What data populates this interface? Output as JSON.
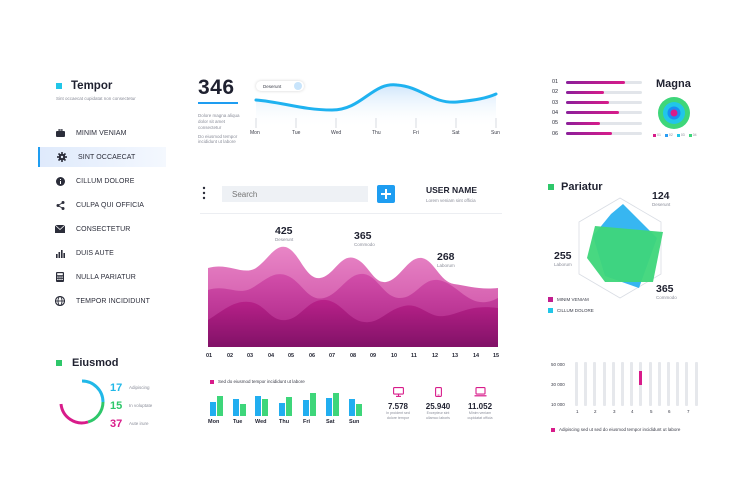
{
  "sidebar": {
    "brand": "Tempor",
    "subtitle": "Sint occaecat cupidatat non consectetur",
    "items": [
      {
        "label": "MINIM VENIAM",
        "icon": "briefcase-icon",
        "active": false
      },
      {
        "label": "SINT OCCAECAT",
        "icon": "gear-icon",
        "active": true
      },
      {
        "label": "CILLUM DOLORE",
        "icon": "info-icon",
        "active": false
      },
      {
        "label": "CULPA QUI OFFICIA",
        "icon": "share-icon",
        "active": false
      },
      {
        "label": "CONSECTETUR",
        "icon": "envelope-icon",
        "active": false
      },
      {
        "label": "DUIS AUTE",
        "icon": "bar-chart-icon",
        "active": false
      },
      {
        "label": "NULLA PARIATUR",
        "icon": "calculator-icon",
        "active": false
      },
      {
        "label": "TEMPOR INCIDIDUNT",
        "icon": "globe-icon",
        "active": false
      }
    ]
  },
  "top_line": {
    "big_number": "346",
    "desc1": "Dolore magna aliqua dolor sit amet consectetur",
    "desc2": "Do eiusmod tempor incididunt ut labore",
    "tooltip": "Deserunt",
    "days": [
      "Mon",
      "Tue",
      "Wed",
      "Thu",
      "Fri",
      "Sat",
      "Sun"
    ]
  },
  "magna": {
    "title": "Magna",
    "rows": [
      {
        "label": "01",
        "value": 0.77
      },
      {
        "label": "02",
        "value": 0.5
      },
      {
        "label": "03",
        "value": 0.57
      },
      {
        "label": "04",
        "value": 0.7
      },
      {
        "label": "05",
        "value": 0.45
      },
      {
        "label": "06",
        "value": 0.6
      }
    ],
    "legend": [
      "01",
      "02",
      "03",
      "04"
    ],
    "legend_colors": [
      "#d81b8a",
      "#2a9df4",
      "#21c6e8",
      "#3ed67a"
    ]
  },
  "main": {
    "search_placeholder": "Search",
    "user_name": "USER NAME",
    "user_sub": "Lorem veniam sint officia",
    "stats": [
      {
        "value": "425",
        "label": "Deserunt"
      },
      {
        "value": "365",
        "label": "Commodo"
      },
      {
        "value": "268",
        "label": "Laborum"
      }
    ],
    "x_labels": [
      "01",
      "02",
      "03",
      "04",
      "05",
      "06",
      "07",
      "08",
      "09",
      "10",
      "11",
      "12",
      "13",
      "14",
      "15"
    ]
  },
  "pariatur": {
    "title": "Pariatur",
    "stats": [
      {
        "value": "124",
        "label": "Deserunt"
      },
      {
        "value": "255",
        "label": "Laborum"
      },
      {
        "value": "365",
        "label": "Commodo"
      }
    ],
    "legend": [
      {
        "label": "MINIM VENIAM",
        "color": "#c21e8f"
      },
      {
        "label": "CILLUM DOLORE",
        "color": "#21c6e8"
      }
    ]
  },
  "eiusmod": {
    "title": "Eiusmod",
    "items": [
      {
        "value": "17",
        "label": "Adipiscing",
        "color": "#21b8e8"
      },
      {
        "value": "15",
        "label": "In voluptate",
        "color": "#2ec76a"
      },
      {
        "value": "37",
        "label": "Aute irure",
        "color": "#d81b8a"
      }
    ]
  },
  "weekly_bars": {
    "legend": "Sed do eiusmod tempor incididunt ut labore",
    "days": [
      "Mon",
      "Tue",
      "Wed",
      "Thu",
      "Fri",
      "Sat",
      "Sun"
    ],
    "series_blue": [
      0.6,
      0.7,
      0.85,
      0.55,
      0.65,
      0.75,
      0.7
    ],
    "series_green": [
      0.85,
      0.5,
      0.7,
      0.8,
      0.95,
      0.95,
      0.5
    ]
  },
  "devices": [
    {
      "icon": "desktop-icon",
      "value": "7.578",
      "label": "In proident sed dolore tempor"
    },
    {
      "icon": "mobile-icon",
      "value": "25.940",
      "label": "Excepteur sint ullamco laboris"
    },
    {
      "icon": "laptop-icon",
      "value": "11.052",
      "label": "Minim veniam cupidatat officia"
    }
  ],
  "right_bars": {
    "y_labels": [
      "50 000",
      "30 000",
      "10 000"
    ],
    "x_labels": [
      "1",
      "2",
      "3",
      "4",
      "5",
      "6",
      "7"
    ],
    "highlight_value": 0.5,
    "legend": "Adipiscing sed ut sed do eiusmod tempor incididunt ut labore"
  },
  "colors": {
    "accent_blue": "#1e9df1",
    "accent_pink": "#c21e8f",
    "accent_green": "#2ec76a",
    "cyan": "#21c6e8"
  }
}
